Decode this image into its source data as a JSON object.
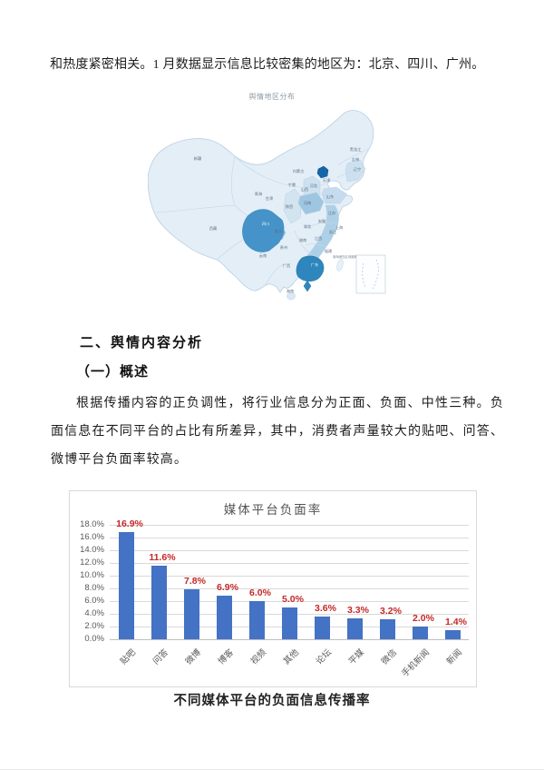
{
  "page": {
    "intro_text": "和热度紧密相关。1 月数据显示信息比较密集的地区为：北京、四川、广州。",
    "section_heading": "二、舆情内容分析",
    "subsection_heading": "（一）概述",
    "paragraph": "根据传播内容的正负调性，将行业信息分为正面、负面、中性三种。负面信息在不同平台的占比有所差异，其中，消费者声量较大的贴吧、问答、微博平台负面率较高。",
    "chart_caption": "不同媒体平台的负面信息传播率"
  },
  "map": {
    "title": "舆情地区分布",
    "inset_label": "南海诸岛区域缩略图",
    "colors": {
      "base": "#e4eef7",
      "border": "#b7cfe3",
      "highlight_high": "#1565a8",
      "highlight_medium": "#3d8fc3",
      "highlight_low": "#a9cbe3"
    },
    "regions": [
      {
        "name": "新疆",
        "level": "light"
      },
      {
        "name": "西藏",
        "level": "light"
      },
      {
        "name": "青海",
        "level": "light"
      },
      {
        "name": "甘肃",
        "level": "light"
      },
      {
        "name": "宁夏",
        "level": "light"
      },
      {
        "name": "内蒙古",
        "level": "light"
      },
      {
        "name": "黑龙江",
        "level": "light"
      },
      {
        "name": "吉林",
        "level": "light"
      },
      {
        "name": "辽宁",
        "level": "medium-light"
      },
      {
        "name": "天津",
        "level": "light"
      },
      {
        "name": "山西",
        "level": "medium-light"
      },
      {
        "name": "河北",
        "level": "medium-light"
      },
      {
        "name": "山东",
        "level": "medium-light"
      },
      {
        "name": "河南",
        "level": "medium"
      },
      {
        "name": "陕西",
        "level": "medium-light"
      },
      {
        "name": "四川",
        "level": "high"
      },
      {
        "name": "重庆",
        "level": "medium"
      },
      {
        "name": "湖北",
        "level": "light"
      },
      {
        "name": "安徽",
        "level": "light"
      },
      {
        "name": "江苏",
        "level": "medium"
      },
      {
        "name": "上海",
        "level": "medium"
      },
      {
        "name": "浙江",
        "level": "medium"
      },
      {
        "name": "江西",
        "level": "light"
      },
      {
        "name": "湖南",
        "level": "light"
      },
      {
        "name": "贵州",
        "level": "light"
      },
      {
        "name": "福建",
        "level": "medium"
      },
      {
        "name": "云南",
        "level": "light"
      },
      {
        "name": "广西",
        "level": "light"
      },
      {
        "name": "广东",
        "level": "high"
      },
      {
        "name": "海南",
        "level": "light"
      }
    ],
    "highlighted_regions": [
      "北京",
      "四川",
      "广东"
    ]
  },
  "chart_data": {
    "type": "bar",
    "title": "媒体平台负面率",
    "categories": [
      "贴吧",
      "问答",
      "微博",
      "博客",
      "视频",
      "其他",
      "论坛",
      "平媒",
      "微信",
      "手机新闻",
      "新闻"
    ],
    "values": [
      16.9,
      11.6,
      7.8,
      6.9,
      6.0,
      5.0,
      3.6,
      3.3,
      3.2,
      2.0,
      1.4
    ],
    "xlabel": "",
    "ylabel": "",
    "ylim": [
      0,
      18
    ],
    "ytick_step": 2,
    "ytick_format": "percent_1dp",
    "grid": true,
    "legend": "none",
    "bar_color": "#4472c4",
    "value_label_color": "#c62828",
    "axis_text_color": "#595959"
  }
}
